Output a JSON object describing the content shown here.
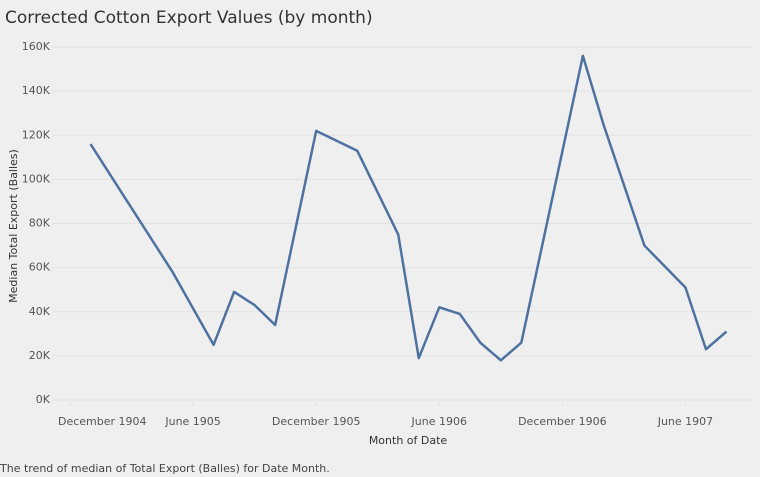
{
  "chart_data": {
    "type": "line",
    "title": "Corrected Cotton Export Values (by month)",
    "caption": "The trend of median of Total Export (Balles) for Date Month.",
    "x_label": "Month of Date",
    "y_label": "Median Total Export (Balles)",
    "x": [
      "1905-01",
      "1905-05",
      "1905-07",
      "1905-08",
      "1905-09",
      "1905-10",
      "1905-12",
      "1906-02",
      "1906-04",
      "1906-05",
      "1906-06",
      "1906-07",
      "1906-08",
      "1906-09",
      "1906-10",
      "1907-01",
      "1907-02",
      "1907-04",
      "1907-06",
      "1907-07",
      "1907-08"
    ],
    "series": [
      {
        "name": "Median Total Export (Balles)",
        "color": "#4e72a0",
        "values": [
          116000,
          58000,
          25000,
          49000,
          43000,
          34000,
          122000,
          113000,
          75000,
          19000,
          42000,
          39000,
          26000,
          18000,
          26000,
          156000,
          125000,
          70000,
          51000,
          23000,
          31000
        ]
      }
    ],
    "xlim": [
      "1904-12",
      "1907-09"
    ],
    "xticks": [
      {
        "value": "1904-12",
        "label": "December 1904"
      },
      {
        "value": "1905-06",
        "label": "June 1905"
      },
      {
        "value": "1905-12",
        "label": "December 1905"
      },
      {
        "value": "1906-06",
        "label": "June 1906"
      },
      {
        "value": "1906-12",
        "label": "December 1906"
      },
      {
        "value": "1907-06",
        "label": "June 1907"
      }
    ],
    "ylim": [
      0,
      160000
    ],
    "yticks": [
      {
        "value": 0,
        "label": "0K"
      },
      {
        "value": 20000,
        "label": "20K"
      },
      {
        "value": 40000,
        "label": "40K"
      },
      {
        "value": 60000,
        "label": "60K"
      },
      {
        "value": 80000,
        "label": "80K"
      },
      {
        "value": 100000,
        "label": "100K"
      },
      {
        "value": 120000,
        "label": "120K"
      },
      {
        "value": 140000,
        "label": "140K"
      },
      {
        "value": 160000,
        "label": "160K"
      }
    ],
    "grid": true
  }
}
